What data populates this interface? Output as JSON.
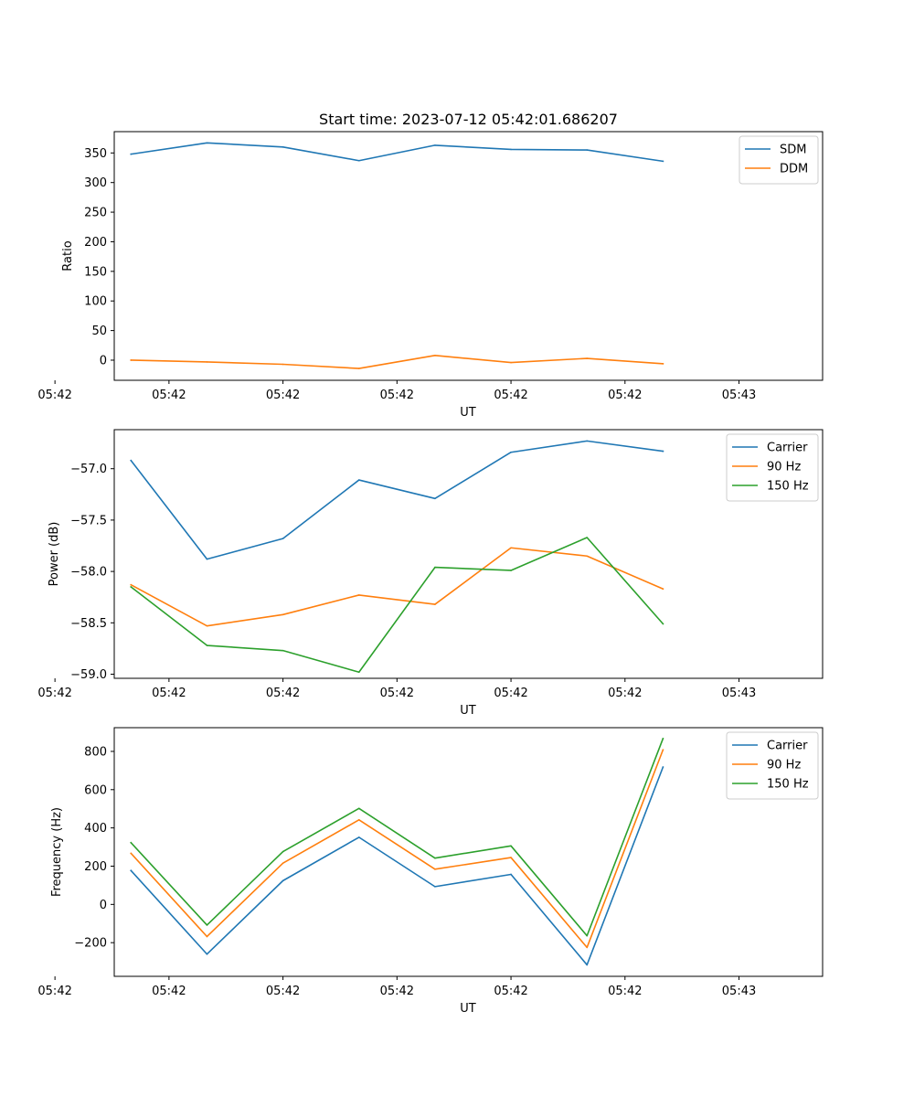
{
  "figure_title": "Start time: 2023-07-12 05:42:01.686207",
  "colors": {
    "blue": "#1f77b4",
    "orange": "#ff7f0e",
    "green": "#2ca02c"
  },
  "chart_data": [
    {
      "type": "line",
      "title": "Start time: 2023-07-12 05:42:01.686207",
      "xlabel": "UT",
      "ylabel": "Ratio",
      "x": [
        1,
        2,
        3,
        4,
        5,
        6,
        7,
        8
      ],
      "xlim": [
        0.78,
        10.1
      ],
      "ylim": [
        -34,
        386
      ],
      "xticks": [
        {
          "pos": 0.0,
          "label": "05:42"
        },
        {
          "pos": 1.5,
          "label": "05:42"
        },
        {
          "pos": 3.0,
          "label": "05:42"
        },
        {
          "pos": 4.5,
          "label": "05:42"
        },
        {
          "pos": 6.0,
          "label": "05:42"
        },
        {
          "pos": 7.5,
          "label": "05:42"
        },
        {
          "pos": 9.0,
          "label": "05:43"
        }
      ],
      "yticks": [
        0,
        50,
        100,
        150,
        200,
        250,
        300,
        350
      ],
      "legend_position": "top-right",
      "series": [
        {
          "name": "SDM",
          "color": "#1f77b4",
          "values": [
            348,
            367,
            360,
            337,
            363,
            356,
            355,
            336
          ]
        },
        {
          "name": "DDM",
          "color": "#ff7f0e",
          "values": [
            0,
            -3,
            -7,
            -14,
            8,
            -4,
            3,
            -6
          ]
        }
      ]
    },
    {
      "type": "line",
      "title": "",
      "xlabel": "UT",
      "ylabel": "Power (dB)",
      "x": [
        1,
        2,
        3,
        4,
        5,
        6,
        7,
        8
      ],
      "xlim": [
        0.78,
        10.1
      ],
      "ylim": [
        -59.04,
        -56.62
      ],
      "xticks": [
        {
          "pos": 0.0,
          "label": "05:42"
        },
        {
          "pos": 1.5,
          "label": "05:42"
        },
        {
          "pos": 3.0,
          "label": "05:42"
        },
        {
          "pos": 4.5,
          "label": "05:42"
        },
        {
          "pos": 6.0,
          "label": "05:42"
        },
        {
          "pos": 7.5,
          "label": "05:42"
        },
        {
          "pos": 9.0,
          "label": "05:43"
        }
      ],
      "yticks": [
        -59.0,
        -58.5,
        -58.0,
        -57.5,
        -57.0
      ],
      "ytick_labels": [
        "−59.0",
        "−58.5",
        "−58.0",
        "−57.5",
        "−57.0"
      ],
      "legend_position": "top-right",
      "series": [
        {
          "name": "Carrier",
          "color": "#1f77b4",
          "values": [
            -56.92,
            -57.88,
            -57.68,
            -57.11,
            -57.29,
            -56.84,
            -56.73,
            -56.83
          ]
        },
        {
          "name": "90 Hz",
          "color": "#ff7f0e",
          "values": [
            -58.13,
            -58.53,
            -58.42,
            -58.23,
            -58.32,
            -57.77,
            -57.85,
            -58.17
          ]
        },
        {
          "name": "150 Hz",
          "color": "#2ca02c",
          "values": [
            -58.15,
            -58.72,
            -58.77,
            -58.98,
            -57.96,
            -57.99,
            -57.67,
            -58.51
          ]
        }
      ]
    },
    {
      "type": "line",
      "title": "",
      "xlabel": "UT",
      "ylabel": "Frequency (Hz)",
      "x": [
        1,
        2,
        3,
        4,
        5,
        6,
        7,
        8
      ],
      "xlim": [
        0.78,
        10.1
      ],
      "ylim": [
        -376,
        924
      ],
      "xticks": [
        {
          "pos": 0.0,
          "label": "05:42"
        },
        {
          "pos": 1.5,
          "label": "05:42"
        },
        {
          "pos": 3.0,
          "label": "05:42"
        },
        {
          "pos": 4.5,
          "label": "05:42"
        },
        {
          "pos": 6.0,
          "label": "05:42"
        },
        {
          "pos": 7.5,
          "label": "05:42"
        },
        {
          "pos": 9.0,
          "label": "05:43"
        }
      ],
      "yticks": [
        -200,
        0,
        200,
        400,
        600,
        800
      ],
      "ytick_labels": [
        "−200",
        "0",
        "200",
        "400",
        "600",
        "800"
      ],
      "legend_position": "top-right",
      "series": [
        {
          "name": "Carrier",
          "color": "#1f77b4",
          "values": [
            177,
            -260,
            124,
            351,
            93,
            157,
            -316,
            718
          ]
        },
        {
          "name": "90 Hz",
          "color": "#ff7f0e",
          "values": [
            267,
            -168,
            216,
            442,
            184,
            245,
            -225,
            808
          ]
        },
        {
          "name": "150 Hz",
          "color": "#2ca02c",
          "values": [
            323,
            -108,
            276,
            502,
            242,
            306,
            -164,
            867
          ]
        }
      ]
    }
  ]
}
